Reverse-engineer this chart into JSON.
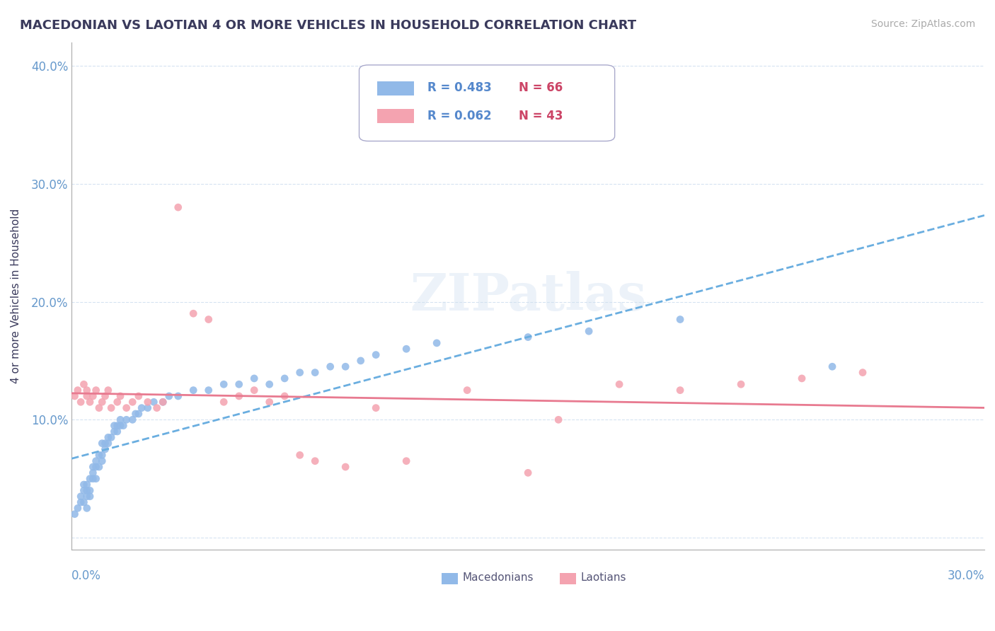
{
  "title": "MACEDONIAN VS LAOTIAN 4 OR MORE VEHICLES IN HOUSEHOLD CORRELATION CHART",
  "source": "Source: ZipAtlas.com",
  "ylabel": "4 or more Vehicles in Household",
  "x_min": 0.0,
  "x_max": 0.3,
  "y_min": -0.01,
  "y_max": 0.42,
  "yticks": [
    0.0,
    0.1,
    0.2,
    0.3,
    0.4
  ],
  "ytick_labels": [
    "",
    "10.0%",
    "20.0%",
    "30.0%",
    "40.0%"
  ],
  "legend_macedonian_r": "R = 0.483",
  "legend_macedonian_n": "N = 66",
  "legend_laotian_r": "R = 0.062",
  "legend_laotian_n": "N = 43",
  "color_macedonian": "#91b9e8",
  "color_laotian": "#f4a3b0",
  "color_macedonian_line": "#6aaee0",
  "color_laotian_line": "#e87a90",
  "color_title": "#3a3a5c",
  "color_axis": "#6699cc",
  "color_tick_labels": "#6699cc",
  "color_legend_text_r": "#5588cc",
  "color_legend_text_n": "#cc4466",
  "watermark": "ZIPatlas",
  "macedonian_x": [
    0.001,
    0.002,
    0.003,
    0.003,
    0.004,
    0.004,
    0.004,
    0.005,
    0.005,
    0.005,
    0.005,
    0.006,
    0.006,
    0.006,
    0.007,
    0.007,
    0.007,
    0.008,
    0.008,
    0.008,
    0.009,
    0.009,
    0.01,
    0.01,
    0.01,
    0.011,
    0.011,
    0.012,
    0.012,
    0.013,
    0.014,
    0.014,
    0.015,
    0.015,
    0.016,
    0.016,
    0.017,
    0.018,
    0.02,
    0.021,
    0.022,
    0.023,
    0.025,
    0.027,
    0.03,
    0.032,
    0.035,
    0.04,
    0.045,
    0.05,
    0.055,
    0.06,
    0.065,
    0.07,
    0.075,
    0.08,
    0.085,
    0.09,
    0.095,
    0.1,
    0.11,
    0.12,
    0.15,
    0.17,
    0.2,
    0.25
  ],
  "macedonian_y": [
    0.02,
    0.025,
    0.03,
    0.035,
    0.04,
    0.045,
    0.03,
    0.025,
    0.035,
    0.04,
    0.045,
    0.05,
    0.035,
    0.04,
    0.05,
    0.055,
    0.06,
    0.05,
    0.06,
    0.065,
    0.06,
    0.07,
    0.065,
    0.07,
    0.08,
    0.075,
    0.08,
    0.08,
    0.085,
    0.085,
    0.09,
    0.095,
    0.09,
    0.095,
    0.095,
    0.1,
    0.095,
    0.1,
    0.1,
    0.105,
    0.105,
    0.11,
    0.11,
    0.115,
    0.115,
    0.12,
    0.12,
    0.125,
    0.125,
    0.13,
    0.13,
    0.135,
    0.13,
    0.135,
    0.14,
    0.14,
    0.145,
    0.145,
    0.15,
    0.155,
    0.16,
    0.165,
    0.17,
    0.175,
    0.185,
    0.145
  ],
  "laotian_x": [
    0.001,
    0.002,
    0.003,
    0.004,
    0.005,
    0.005,
    0.006,
    0.007,
    0.008,
    0.009,
    0.01,
    0.011,
    0.012,
    0.013,
    0.015,
    0.016,
    0.018,
    0.02,
    0.022,
    0.025,
    0.028,
    0.03,
    0.035,
    0.04,
    0.045,
    0.05,
    0.055,
    0.06,
    0.065,
    0.07,
    0.075,
    0.08,
    0.09,
    0.1,
    0.11,
    0.13,
    0.15,
    0.16,
    0.18,
    0.2,
    0.22,
    0.24,
    0.26
  ],
  "laotian_y": [
    0.12,
    0.125,
    0.115,
    0.13,
    0.12,
    0.125,
    0.115,
    0.12,
    0.125,
    0.11,
    0.115,
    0.12,
    0.125,
    0.11,
    0.115,
    0.12,
    0.11,
    0.115,
    0.12,
    0.115,
    0.11,
    0.115,
    0.28,
    0.19,
    0.185,
    0.115,
    0.12,
    0.125,
    0.115,
    0.12,
    0.07,
    0.065,
    0.06,
    0.11,
    0.065,
    0.125,
    0.055,
    0.1,
    0.13,
    0.125,
    0.13,
    0.135,
    0.14
  ]
}
